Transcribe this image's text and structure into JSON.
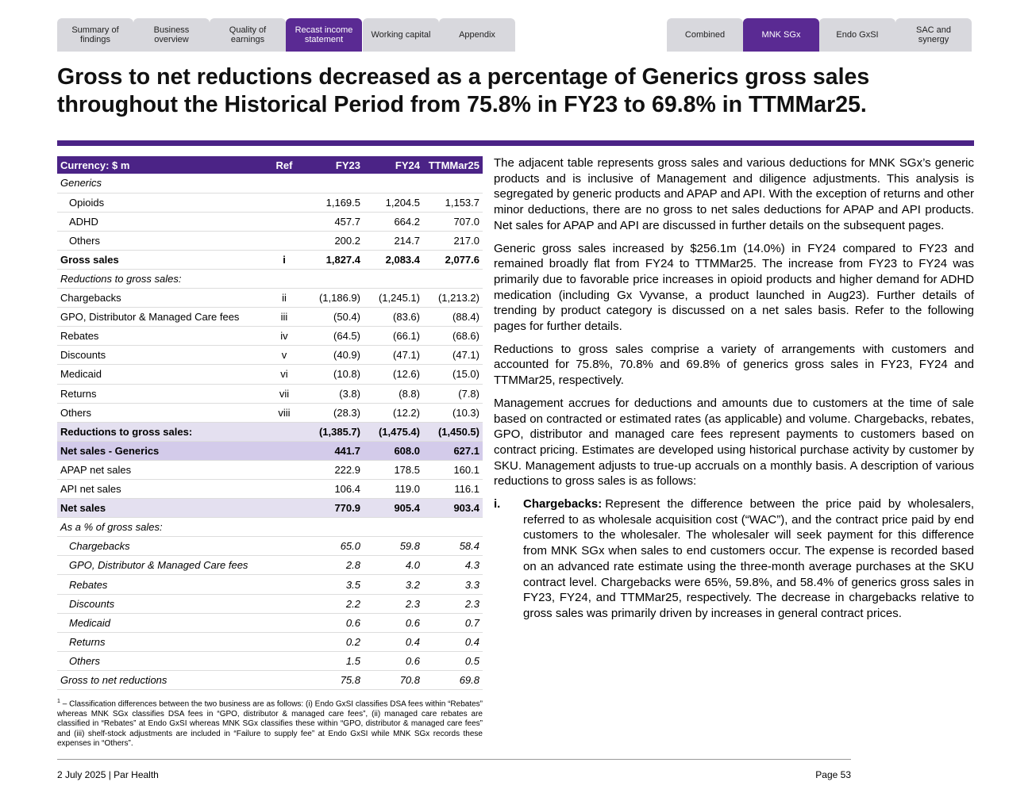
{
  "nav": {
    "left": [
      "Summary of findings",
      "Business overview",
      "Quality of earnings",
      "Recast income statement",
      "Working capital",
      "Appendix"
    ],
    "right": [
      "Combined",
      "MNK SGx",
      "Endo GxSI",
      "SAC and synergy"
    ]
  },
  "title": "Gross to net reductions decreased as a percentage of Generics gross sales throughout the Historical Period from 75.8% in FY23 to 69.8% in TTMMar25.",
  "table": {
    "header": [
      "Currency: $ m",
      "Ref",
      "FY23",
      "FY24",
      "TTMMar25"
    ],
    "rows": [
      {
        "label": "Generics"
      },
      {
        "label": "Opioids",
        "values": [
          "1,169.5",
          "1,204.5",
          "1,153.7"
        ]
      },
      {
        "label": "ADHD",
        "values": [
          "457.7",
          "664.2",
          "707.0"
        ]
      },
      {
        "label": "Others",
        "values": [
          "200.2",
          "214.7",
          "217.0"
        ]
      },
      {
        "label": "Gross sales",
        "ref": "i",
        "values": [
          "1,827.4",
          "2,083.4",
          "2,077.6"
        ]
      },
      {
        "label": "Reductions to gross sales:"
      },
      {
        "label": "Chargebacks",
        "ref": "ii",
        "values": [
          "(1,186.9)",
          "(1,245.1)",
          "(1,213.2)"
        ]
      },
      {
        "label": "GPO, Distributor & Managed Care fees",
        "ref": "iii",
        "values": [
          "(50.4)",
          "(83.6)",
          "(88.4)"
        ]
      },
      {
        "label": "Rebates",
        "ref": "iv",
        "values": [
          "(64.5)",
          "(66.1)",
          "(68.6)"
        ]
      },
      {
        "label": "Discounts",
        "ref": "v",
        "values": [
          "(40.9)",
          "(47.1)",
          "(47.1)"
        ]
      },
      {
        "label": "Medicaid",
        "ref": "vi",
        "values": [
          "(10.8)",
          "(12.6)",
          "(15.0)"
        ]
      },
      {
        "label": "Returns",
        "ref": "vii",
        "values": [
          "(3.8)",
          "(8.8)",
          "(7.8)"
        ]
      },
      {
        "label": "Others",
        "ref": "viii",
        "values": [
          "(28.3)",
          "(12.2)",
          "(10.3)"
        ]
      },
      {
        "label": "Reductions to gross sales:",
        "values": [
          "(1,385.7)",
          "(1,475.4)",
          "(1,450.5)"
        ]
      },
      {
        "label": "Net sales - Generics",
        "values": [
          "441.7",
          "608.0",
          "627.1"
        ]
      },
      {
        "label": "APAP net sales",
        "values": [
          "222.9",
          "178.5",
          "160.1"
        ]
      },
      {
        "label": "API net sales",
        "values": [
          "106.4",
          "119.0",
          "116.1"
        ]
      },
      {
        "label": "Net sales",
        "values": [
          "770.9",
          "905.4",
          "903.4"
        ]
      },
      {
        "label": "As a % of gross sales:"
      },
      {
        "label": "Chargebacks",
        "values": [
          "65.0",
          "59.8",
          "58.4"
        ]
      },
      {
        "label": "GPO, Distributor & Managed Care fees",
        "values": [
          "2.8",
          "4.0",
          "4.3"
        ]
      },
      {
        "label": "Rebates",
        "values": [
          "3.5",
          "3.2",
          "3.3"
        ]
      },
      {
        "label": "Discounts",
        "values": [
          "2.2",
          "2.3",
          "2.3"
        ]
      },
      {
        "label": "Medicaid",
        "values": [
          "0.6",
          "0.6",
          "0.7"
        ]
      },
      {
        "label": "Returns",
        "values": [
          "0.2",
          "0.4",
          "0.4"
        ]
      },
      {
        "label": "Others",
        "values": [
          "1.5",
          "0.6",
          "0.5"
        ]
      },
      {
        "label": "Gross to net reductions",
        "values": [
          "75.8",
          "70.8",
          "69.8"
        ]
      }
    ]
  },
  "footnote": {
    "marker": "1",
    "text": "– Classification differences between the two business are as follows: (i) Endo GxSI classifies DSA fees within “Rebates” whereas MNK SGx classifies DSA fees in “GPO, distributor & managed care fees”, (ii) managed care rebates are classified in “Rebates” at Endo GxSI whereas  MNK SGx classifies these within “GPO, distributor & managed care fees” and (iii) shelf-stock adjustments are included in “Failure to supply fee” at Endo GxSI while MNK SGx records these expenses in “Others”."
  },
  "paragraphs": [
    "The adjacent table represents gross sales and various deductions for MNK SGx’s generic products and is inclusive of Management and diligence adjustments. This analysis is segregated by generic products and APAP and API. With the exception of returns and other minor deductions, there are no gross to net sales deductions for APAP and API products. Net sales for APAP and API are discussed in further details on the subsequent pages.",
    "Generic gross sales increased by $256.1m (14.0%) in FY24 compared to FY23 and remained broadly flat from FY24 to TTMMar25. The increase from FY23 to FY24 was primarily due to favorable price increases in opioid products and higher demand for ADHD medication (including Gx Vyvanse, a product launched in Aug23). Further details of trending by product category is discussed on a net sales basis. Refer to the following pages for further details.",
    "Reductions to gross sales comprise a variety of arrangements with customers and accounted for 75.8%, 70.8% and 69.8% of generics gross sales in FY23, FY24 and TTMMar25, respectively.",
    "Management accrues for deductions and amounts due to customers at the time of sale based on contracted or estimated rates (as applicable) and volume. Chargebacks, rebates, GPO, distributor and managed care fees represent payments to customers based on contract pricing. Estimates are developed using historical purchase activity by customer by SKU. Management adjusts to true-up accruals on a monthly basis. A description of various reductions to gross sales is as follows:"
  ],
  "list": [
    {
      "marker": "i.",
      "term": "Chargebacks:",
      "text": "Represent the difference between the price paid by wholesalers, referred to as wholesale acquisition cost (“WAC”), and the contract price paid by end customers to the wholesaler. The wholesaler will seek payment for this difference from MNK SGx when sales to end customers occur. The expense is recorded based on an advanced rate estimate using the three-month average purchases at the SKU contract level. Chargebacks were 65%, 59.8%, and 58.4% of generics gross sales in FY23, FY24, and TTMMar25, respectively. The decrease in chargebacks relative to gross sales was primarily driven by increases in general contract prices."
    }
  ],
  "footer": {
    "left": "2 July 2025 | Par Health",
    "right": "Page 53"
  }
}
